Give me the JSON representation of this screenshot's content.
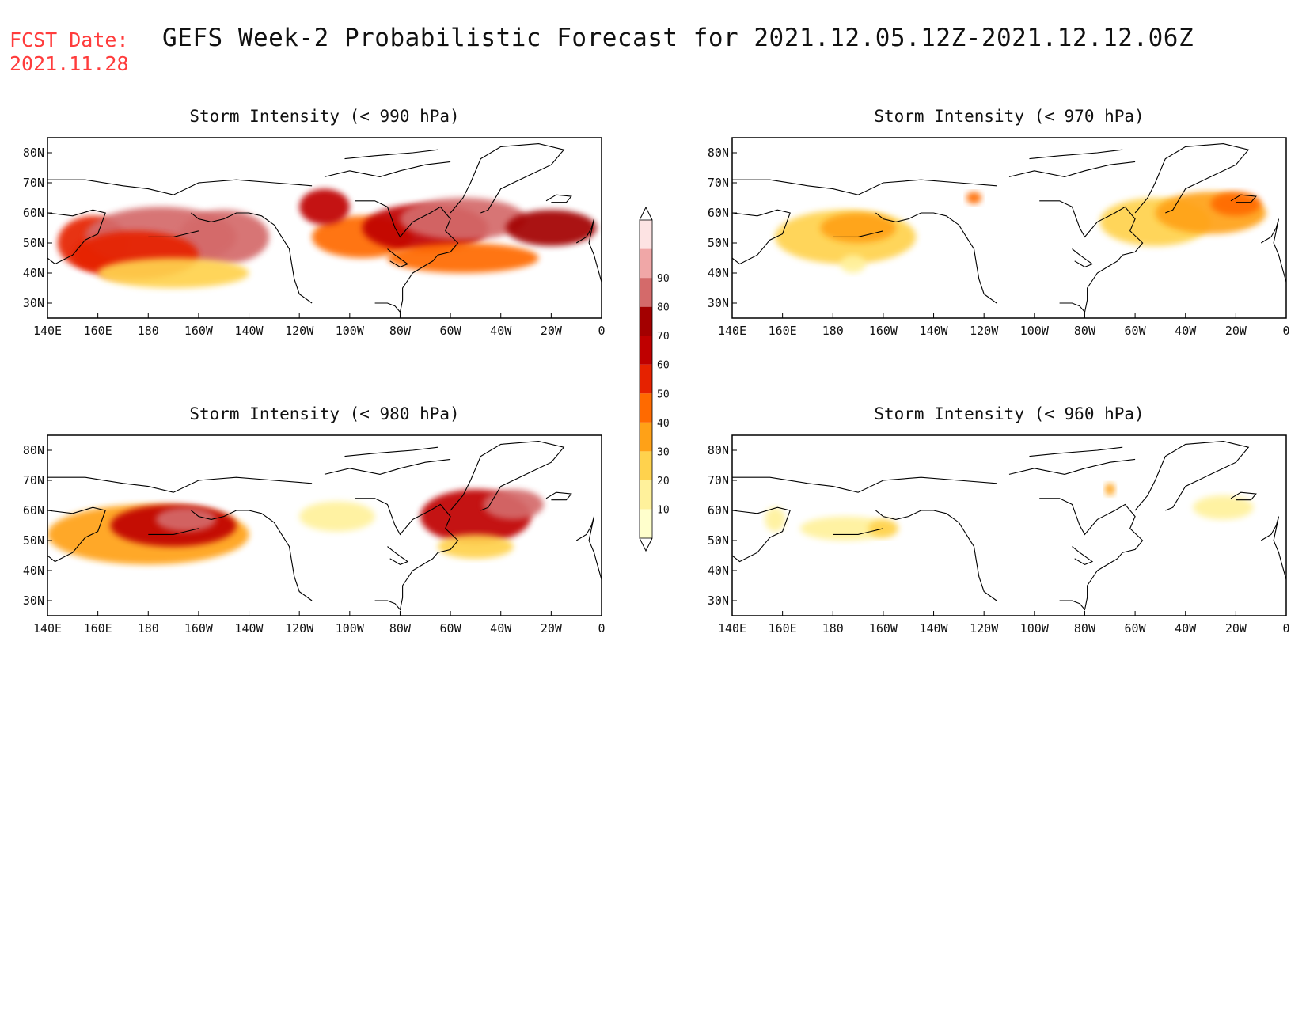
{
  "header": {
    "fcst_label": "FCST Date:",
    "fcst_date": "2021.11.28",
    "title": "GEFS Week-2 Probabilistic Forecast for 2021.12.05.12Z-2021.12.12.06Z"
  },
  "colors": {
    "levels": [
      "#ffffcc",
      "#fff19b",
      "#ffd24d",
      "#ffa117",
      "#ff6a00",
      "#e62200",
      "#bf0000",
      "#a30000",
      "#d46a6a",
      "#f0a7a7",
      "#fde3e3"
    ],
    "coast": "#000000",
    "frame": "#000000"
  },
  "chart_data": [
    {
      "type": "heatmap",
      "title": "Storm Intensity (< 990 hPa)",
      "x_ticks": [
        "140E",
        "160E",
        "180",
        "160W",
        "140W",
        "120W",
        "100W",
        "80W",
        "60W",
        "40W",
        "20W",
        "0"
      ],
      "y_ticks": [
        "80N",
        "70N",
        "60N",
        "50N",
        "40N",
        "30N"
      ],
      "xlim": [
        140,
        360
      ],
      "ylim": [
        25,
        85
      ],
      "blobs": [
        {
          "lon": 158,
          "lat": 50,
          "rx": 14,
          "ry": 9,
          "value": 55
        },
        {
          "lon": 185,
          "lat": 52,
          "rx": 30,
          "ry": 10,
          "value": 80
        },
        {
          "lon": 210,
          "lat": 52,
          "rx": 18,
          "ry": 9,
          "value": 85
        },
        {
          "lon": 175,
          "lat": 46,
          "rx": 25,
          "ry": 8,
          "value": 50
        },
        {
          "lon": 190,
          "lat": 40,
          "rx": 30,
          "ry": 5,
          "value": 25
        },
        {
          "lon": 265,
          "lat": 52,
          "rx": 20,
          "ry": 7,
          "value": 45
        },
        {
          "lon": 290,
          "lat": 55,
          "rx": 25,
          "ry": 8,
          "value": 65
        },
        {
          "lon": 305,
          "lat": 58,
          "rx": 25,
          "ry": 7,
          "value": 80
        },
        {
          "lon": 340,
          "lat": 55,
          "rx": 18,
          "ry": 6,
          "value": 70
        },
        {
          "lon": 305,
          "lat": 45,
          "rx": 30,
          "ry": 5,
          "value": 45
        },
        {
          "lon": 250,
          "lat": 62,
          "rx": 10,
          "ry": 6,
          "value": 60
        }
      ]
    },
    {
      "type": "heatmap",
      "title": "Storm Intensity (< 970 hPa)",
      "x_ticks": [
        "140E",
        "160E",
        "180",
        "160W",
        "140W",
        "120W",
        "100W",
        "80W",
        "60W",
        "40W",
        "20W",
        "0"
      ],
      "y_ticks": [
        "80N",
        "70N",
        "60N",
        "50N",
        "40N",
        "30N"
      ],
      "xlim": [
        140,
        360
      ],
      "ylim": [
        25,
        85
      ],
      "blobs": [
        {
          "lon": 185,
          "lat": 52,
          "rx": 28,
          "ry": 9,
          "value": 20
        },
        {
          "lon": 190,
          "lat": 55,
          "rx": 15,
          "ry": 5,
          "value": 30
        },
        {
          "lon": 308,
          "lat": 57,
          "rx": 22,
          "ry": 8,
          "value": 20
        },
        {
          "lon": 330,
          "lat": 60,
          "rx": 22,
          "ry": 7,
          "value": 30
        },
        {
          "lon": 340,
          "lat": 63,
          "rx": 10,
          "ry": 4,
          "value": 40
        },
        {
          "lon": 236,
          "lat": 65,
          "rx": 3,
          "ry": 2,
          "value": 40
        },
        {
          "lon": 188,
          "lat": 43,
          "rx": 5,
          "ry": 3,
          "value": 15
        }
      ]
    },
    {
      "type": "heatmap",
      "title": "Storm Intensity (< 980 hPa)",
      "x_ticks": [
        "140E",
        "160E",
        "180",
        "160W",
        "140W",
        "120W",
        "100W",
        "80W",
        "60W",
        "40W",
        "20W",
        "0"
      ],
      "y_ticks": [
        "80N",
        "70N",
        "60N",
        "50N",
        "40N",
        "30N"
      ],
      "xlim": [
        140,
        360
      ],
      "ylim": [
        25,
        85
      ],
      "blobs": [
        {
          "lon": 180,
          "lat": 52,
          "rx": 40,
          "ry": 10,
          "value": 30
        },
        {
          "lon": 190,
          "lat": 55,
          "rx": 25,
          "ry": 7,
          "value": 60
        },
        {
          "lon": 195,
          "lat": 57,
          "rx": 12,
          "ry": 4,
          "value": 80
        },
        {
          "lon": 255,
          "lat": 58,
          "rx": 15,
          "ry": 5,
          "value": 15
        },
        {
          "lon": 310,
          "lat": 58,
          "rx": 22,
          "ry": 9,
          "value": 60
        },
        {
          "lon": 325,
          "lat": 62,
          "rx": 12,
          "ry": 5,
          "value": 80
        },
        {
          "lon": 310,
          "lat": 48,
          "rx": 15,
          "ry": 4,
          "value": 25
        }
      ]
    },
    {
      "type": "heatmap",
      "title": "Storm Intensity (< 960 hPa)",
      "x_ticks": [
        "140E",
        "160E",
        "180",
        "160W",
        "140W",
        "120W",
        "100W",
        "80W",
        "60W",
        "40W",
        "20W",
        "0"
      ],
      "y_ticks": [
        "80N",
        "70N",
        "60N",
        "50N",
        "40N",
        "30N"
      ],
      "xlim": [
        140,
        360
      ],
      "ylim": [
        25,
        85
      ],
      "blobs": [
        {
          "lon": 185,
          "lat": 54,
          "rx": 18,
          "ry": 4,
          "value": 15
        },
        {
          "lon": 200,
          "lat": 54,
          "rx": 6,
          "ry": 3,
          "value": 20
        },
        {
          "lon": 335,
          "lat": 61,
          "rx": 12,
          "ry": 4,
          "value": 15
        },
        {
          "lon": 290,
          "lat": 67,
          "rx": 2,
          "ry": 2,
          "value": 30
        },
        {
          "lon": 157,
          "lat": 57,
          "rx": 4,
          "ry": 4,
          "value": 15
        }
      ]
    }
  ],
  "colorbar": {
    "labels": [
      "10",
      "20",
      "30",
      "40",
      "50",
      "60",
      "70",
      "80",
      "90"
    ]
  }
}
